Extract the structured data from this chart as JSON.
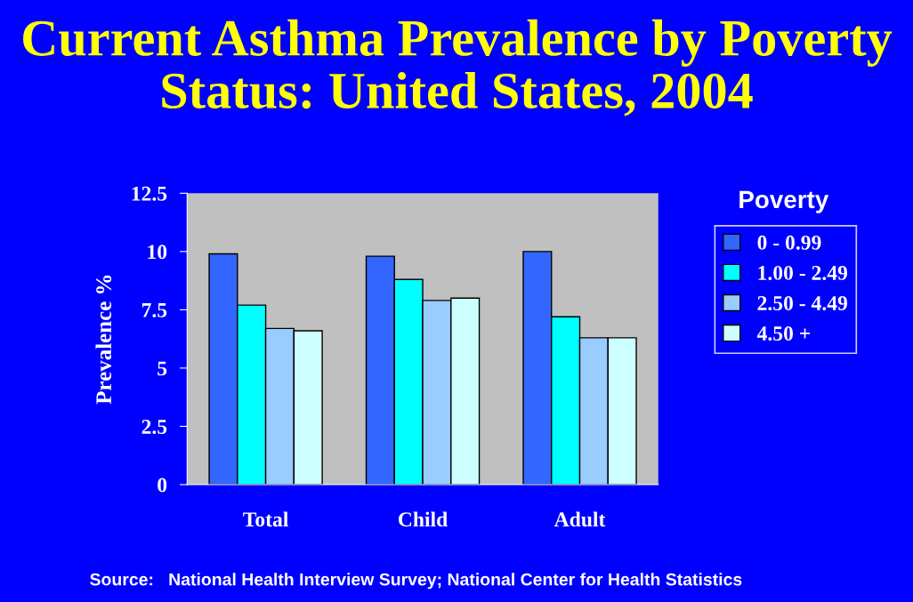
{
  "chart_data": {
    "type": "bar",
    "title": "Current Asthma Prevalence by Poverty Status: United States, 2004",
    "ylabel": "Prevalence %",
    "legend_title": "Poverty",
    "categories": [
      "Total",
      "Child",
      "Adult"
    ],
    "series": [
      {
        "name": "0 - 0.99",
        "color": "#3366ff",
        "values": [
          9.9,
          9.8,
          10.0
        ]
      },
      {
        "name": "1.00 - 2.49",
        "color": "#00ffff",
        "values": [
          7.7,
          8.8,
          7.2
        ]
      },
      {
        "name": "2.50 - 4.49",
        "color": "#99ccff",
        "values": [
          6.7,
          7.9,
          6.3
        ]
      },
      {
        "name": "4.50 +",
        "color": "#ccffff",
        "values": [
          6.6,
          8.0,
          6.3
        ]
      }
    ],
    "ylim": [
      0,
      12.5
    ],
    "yticks": [
      0,
      2.5,
      5,
      7.5,
      10,
      12.5
    ],
    "grid": false,
    "legend": "right",
    "annotations": [
      "Source:   National Health Interview Survey; National Center for Health Statistics"
    ]
  }
}
